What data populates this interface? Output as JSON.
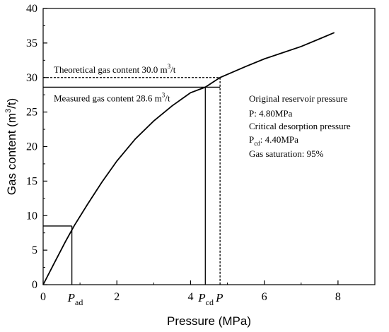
{
  "chart_data": {
    "type": "line",
    "xlabel": "Pressure (MPa)",
    "ylabel_parts": [
      "Gas content (m",
      "3",
      "/t)"
    ],
    "xlim": [
      0,
      9
    ],
    "ylim": [
      0,
      40
    ],
    "x_ticks": [
      0,
      2,
      4,
      6,
      8
    ],
    "y_ticks": [
      0,
      5,
      10,
      15,
      20,
      25,
      30,
      35,
      40
    ],
    "grid": false,
    "series": [
      {
        "x": [
          0,
          0.3,
          0.6,
          0.85,
          1.2,
          1.6,
          2.0,
          2.5,
          3.0,
          3.5,
          4.0,
          4.4,
          4.8,
          5.5,
          6.0,
          6.5,
          7.0,
          7.5,
          7.9
        ],
        "y": [
          0,
          3.1,
          6.2,
          8.6,
          11.6,
          14.9,
          17.9,
          21.1,
          23.7,
          25.9,
          27.8,
          28.6,
          30.0,
          31.6,
          32.7,
          33.6,
          34.5,
          35.6,
          36.5
        ]
      }
    ],
    "markers": {
      "Pad": {
        "x": 0.78,
        "y": 8.5
      },
      "Pcd": {
        "x": 4.4,
        "y": 28.6
      },
      "P": {
        "x": 4.8,
        "y": 30.0
      }
    },
    "annotations": {
      "theoretical": {
        "text": "Theoretical gas content 30.0 m",
        "sup": "3",
        "suffix": "/t"
      },
      "measured": {
        "text": "Measured gas content 28.6 m",
        "sup": "3",
        "suffix": "/t"
      },
      "info": {
        "line1": "Original reservoir pressure",
        "line2": "P: 4.80MPa",
        "line3": "Critical desorption pressure",
        "line4_main": "P",
        "line4_sub": "cd",
        "line4_rest": ": 4.40MPa",
        "line5": "Gas saturation: 95%"
      },
      "x_marker_labels": {
        "pad_main": "P",
        "pad_sub": "ad",
        "pcd_main": "P",
        "pcd_sub": "cd",
        "p_main": "P"
      }
    }
  }
}
